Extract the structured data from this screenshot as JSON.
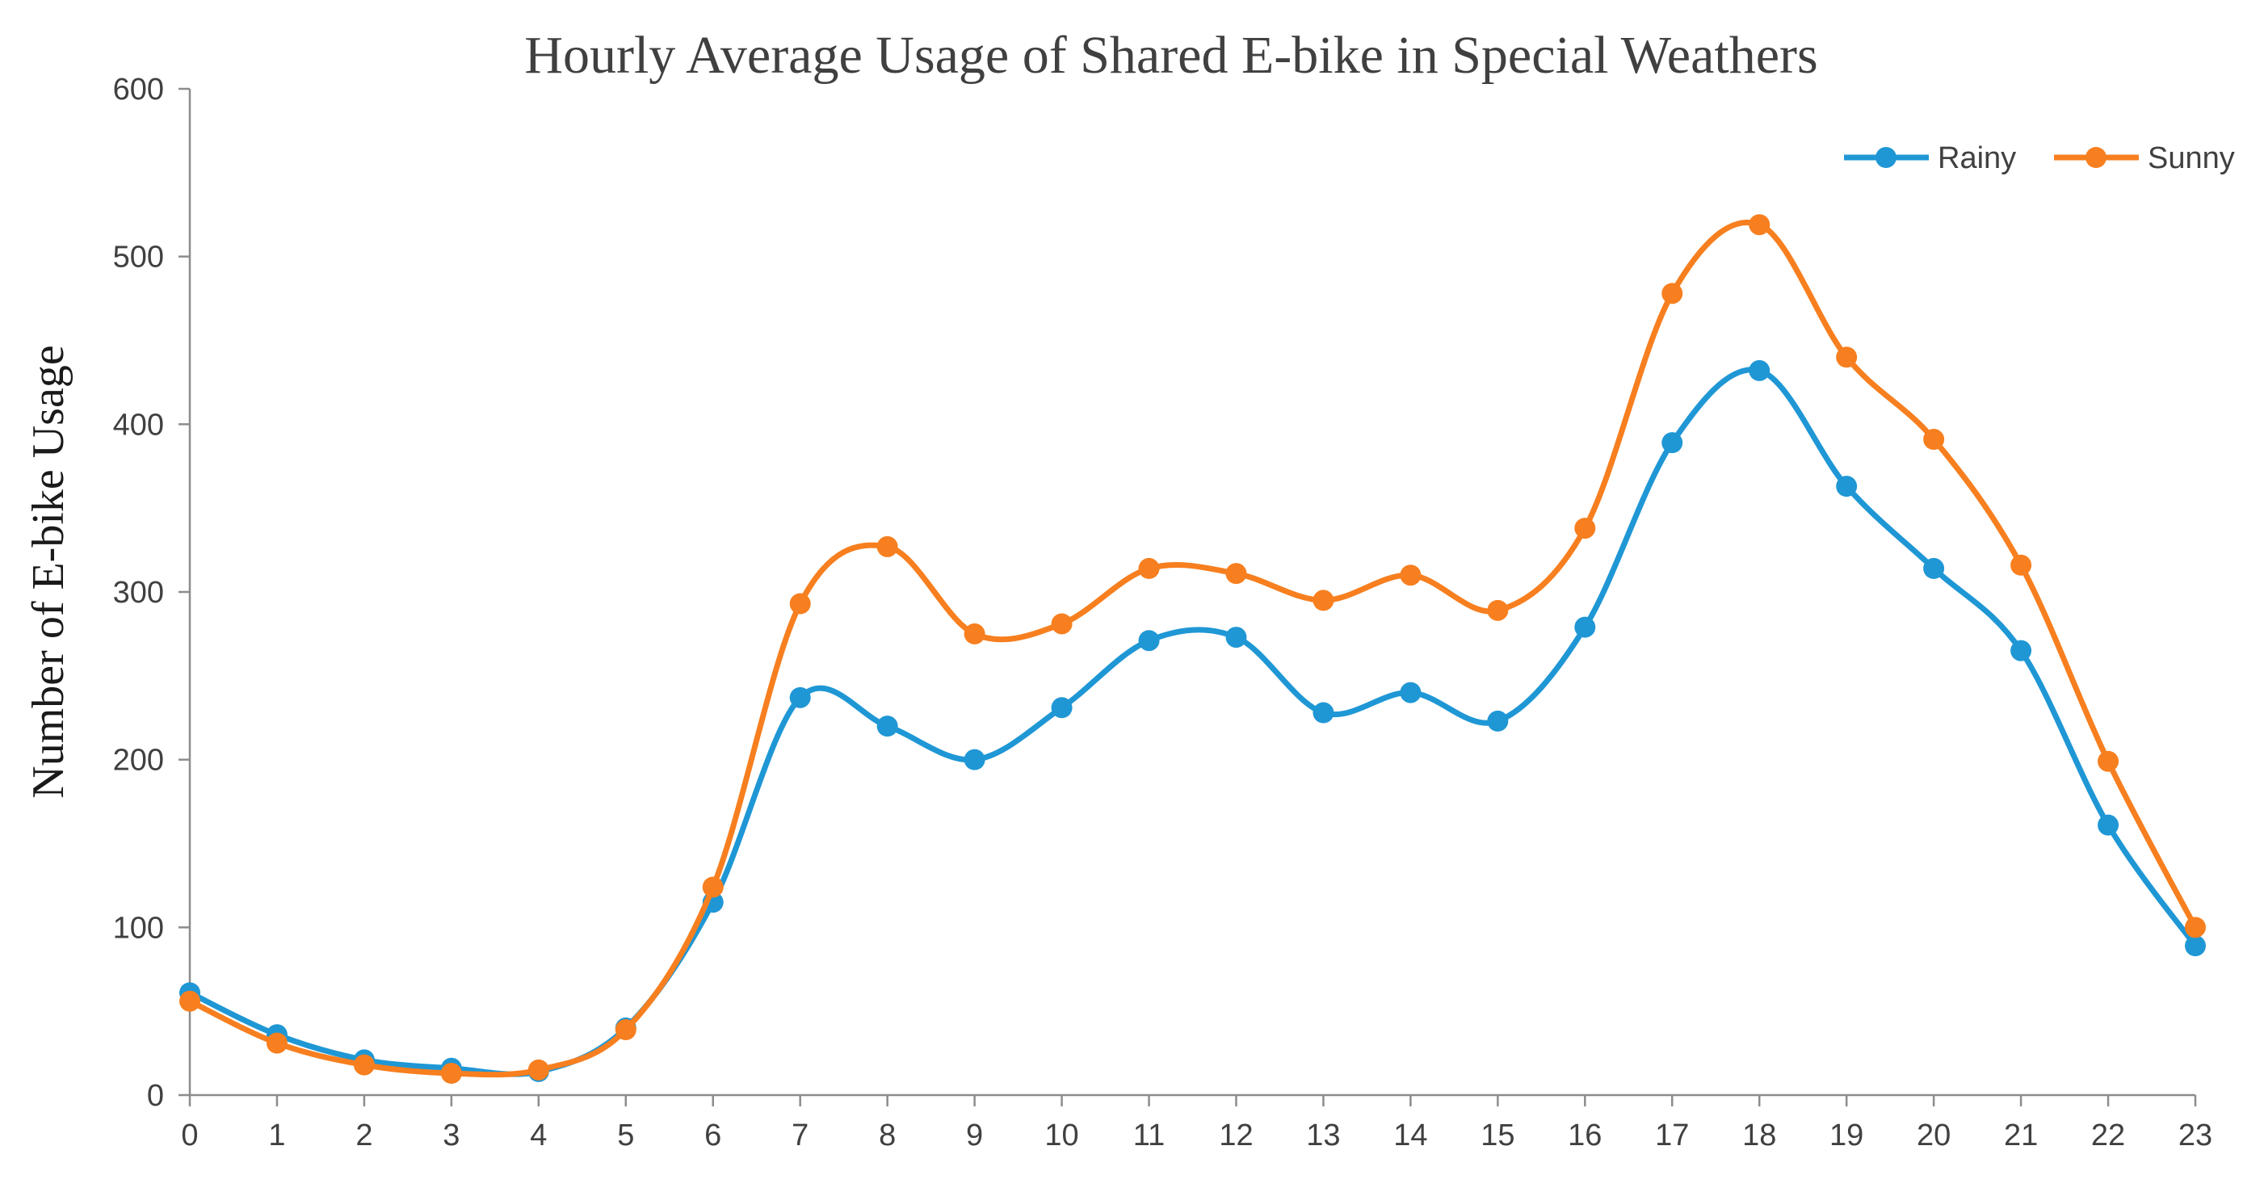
{
  "chart_data": {
    "type": "line",
    "title": "Hourly Average Usage of Shared E-bike in Special Weathers",
    "xlabel": "",
    "ylabel": "Number of E-bike Usage",
    "ylim": [
      0,
      600
    ],
    "yticks": [
      0,
      100,
      200,
      300,
      400,
      500,
      600
    ],
    "categories": [
      "0",
      "1",
      "2",
      "3",
      "4",
      "5",
      "6",
      "7",
      "8",
      "9",
      "10",
      "11",
      "12",
      "13",
      "14",
      "15",
      "16",
      "17",
      "18",
      "19",
      "20",
      "21",
      "22",
      "23"
    ],
    "grid": false,
    "legend": "top-right",
    "series": [
      {
        "name": "Rainy",
        "color": "#1f97d5",
        "values": [
          61,
          36,
          21,
          16,
          14,
          40,
          115,
          237,
          220,
          200,
          231,
          271,
          273,
          228,
          240,
          223,
          279,
          389,
          432,
          363,
          314,
          265,
          161,
          89
        ]
      },
      {
        "name": "Sunny",
        "color": "#f77f1f",
        "values": [
          56,
          31,
          18,
          13,
          15,
          39,
          124,
          293,
          327,
          275,
          281,
          314,
          311,
          295,
          310,
          289,
          338,
          478,
          519,
          440,
          391,
          316,
          199,
          100
        ]
      }
    ]
  }
}
